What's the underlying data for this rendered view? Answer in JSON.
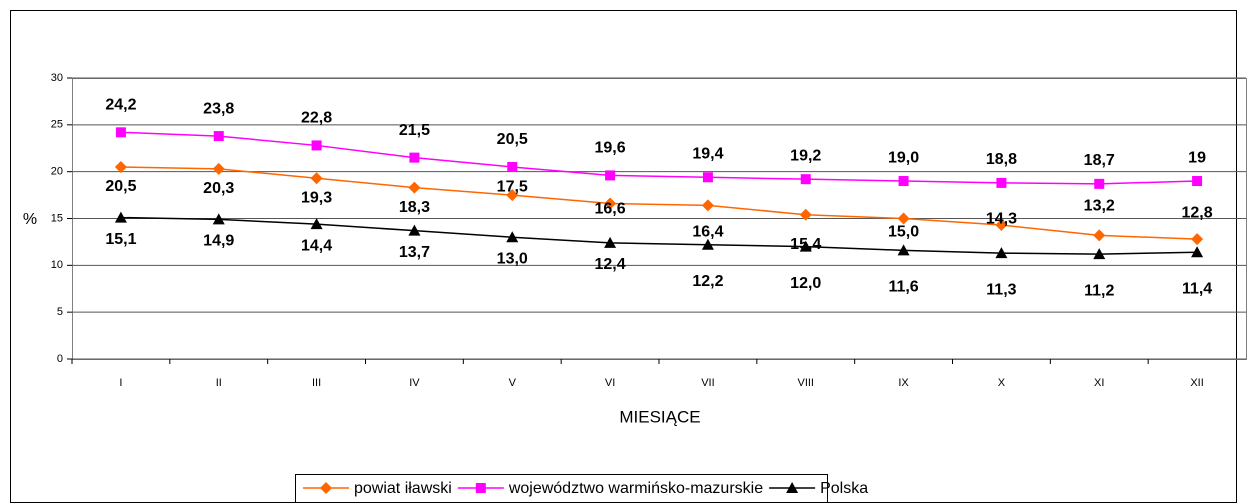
{
  "chart_data": {
    "type": "line",
    "categories": [
      "I",
      "II",
      "III",
      "IV",
      "V",
      "VI",
      "VII",
      "VIII",
      "IX",
      "X",
      "XI",
      "XII"
    ],
    "series": [
      {
        "name": "powiat iławski",
        "color": "#ff6600",
        "values": [
          20.5,
          20.3,
          19.3,
          18.3,
          17.5,
          16.6,
          16.4,
          15.4,
          15.0,
          14.3,
          13.2,
          12.8
        ],
        "value_labels": [
          "20,5",
          "20,3",
          "19,3",
          "18,3",
          "17,5",
          "16,6",
          "16,4",
          "15,4",
          "15,0",
          "14,3",
          "13,2",
          "12,8"
        ]
      },
      {
        "name": "województwo warmińsko-mazurskie",
        "color": "#ff00ff",
        "values": [
          24.2,
          23.8,
          22.8,
          21.5,
          20.5,
          19.6,
          19.4,
          19.2,
          19.0,
          18.8,
          18.7,
          19
        ],
        "value_labels": [
          "24,2",
          "23,8",
          "22,8",
          "21,5",
          "20,5",
          "19,6",
          "19,4",
          "19,2",
          "19,0",
          "18,8",
          "18,7",
          "19"
        ]
      },
      {
        "name": "Polska",
        "color": "#000000",
        "values": [
          15.1,
          14.9,
          14.4,
          13.7,
          13.0,
          12.4,
          12.2,
          12.0,
          11.6,
          11.3,
          11.2,
          11.4
        ],
        "value_labels": [
          "15,1",
          "14,9",
          "14,4",
          "13,7",
          "13,0",
          "12,4",
          "12,2",
          "12,0",
          "11,6",
          "11,3",
          "11,2",
          "11,4"
        ]
      }
    ],
    "x_label": "MIESIĄCE",
    "y_label": "%",
    "ylim": [
      0,
      30
    ],
    "yticks": [
      0,
      5,
      10,
      15,
      20,
      25,
      30
    ],
    "grid": true
  }
}
